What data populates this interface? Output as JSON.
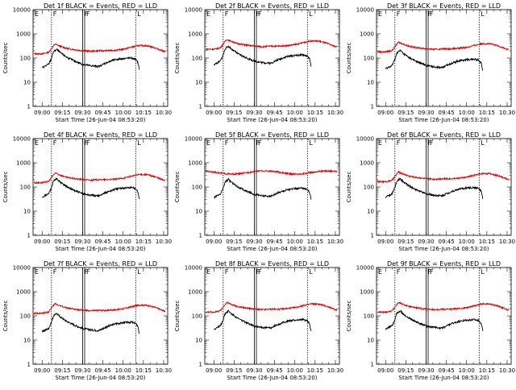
{
  "chart_data": {
    "type": "line",
    "layout": "3x3 grid",
    "x_tick_labels": [
      "09:00",
      "09:15",
      "09:30",
      "09:45",
      "10:00",
      "10:15",
      "10:30"
    ],
    "x_ticks_hours": [
      9.0,
      9.25,
      9.5,
      9.75,
      10.0,
      10.25,
      10.5
    ],
    "x_range_hours": [
      8.888,
      10.55
    ],
    "y_scale": "log",
    "y_range": [
      1,
      10000
    ],
    "y_tick_labels": [
      "1",
      "10",
      "100",
      "1000",
      "10000"
    ],
    "ylabel": "Counts/sec",
    "xlabel": "Start Time (26-Jun-04 08:53:20)",
    "series_colors": {
      "events": "#000000",
      "lld": "#dd0000"
    },
    "interval_markers": [
      {
        "label": "F",
        "start": 9.115,
        "end": 9.5
      },
      {
        "label": "F",
        "start": 9.525,
        "end": 10.155
      }
    ],
    "panels": [
      {
        "title": "Det 1f BLACK = Events, RED = LLD",
        "events_level": 1.0,
        "lld_level": 1.0,
        "lld_flat": false
      },
      {
        "title": "Det 2f BLACK = Events, RED = LLD",
        "events_level": 1.35,
        "lld_level": 1.55,
        "lld_flat": false
      },
      {
        "title": "Det 3f BLACK = Events, RED = LLD",
        "events_level": 0.9,
        "lld_level": 1.2,
        "lld_flat": false
      },
      {
        "title": "Det 4f BLACK = Events, RED = LLD",
        "events_level": 0.95,
        "lld_level": 1.0,
        "lld_flat": false
      },
      {
        "title": "Det 5f BLACK = Events, RED = LLD",
        "events_level": 0.9,
        "lld_level": 1.6,
        "lld_flat": true
      },
      {
        "title": "Det 6f BLACK = Events, RED = LLD",
        "events_level": 0.95,
        "lld_level": 1.1,
        "lld_flat": false
      },
      {
        "title": "Det 7f BLACK = Events, RED = LLD",
        "events_level": 0.55,
        "lld_level": 0.85,
        "lld_flat": false
      },
      {
        "title": "Det 8f BLACK = Events, RED = LLD",
        "events_level": 0.7,
        "lld_level": 0.95,
        "lld_flat": false
      },
      {
        "title": "Det 9f BLACK = Events, RED = LLD",
        "events_level": 0.7,
        "lld_level": 0.95,
        "lld_flat": false
      }
    ],
    "events_profile": [
      [
        8.95,
        null
      ],
      [
        9.0,
        40
      ],
      [
        9.08,
        55
      ],
      [
        9.11,
        90
      ],
      [
        9.14,
        180
      ],
      [
        9.18,
        230
      ],
      [
        9.22,
        170
      ],
      [
        9.3,
        110
      ],
      [
        9.4,
        75
      ],
      [
        9.5,
        55
      ],
      [
        9.6,
        48
      ],
      [
        9.7,
        45
      ],
      [
        9.8,
        65
      ],
      [
        9.9,
        85
      ],
      [
        10.0,
        95
      ],
      [
        10.1,
        100
      ],
      [
        10.15,
        90
      ],
      [
        10.18,
        70
      ],
      [
        10.2,
        35
      ]
    ],
    "lld_profile": [
      [
        8.9,
        150
      ],
      [
        9.0,
        150
      ],
      [
        9.08,
        170
      ],
      [
        9.12,
        260
      ],
      [
        9.16,
        380
      ],
      [
        9.2,
        330
      ],
      [
        9.3,
        250
      ],
      [
        9.45,
        210
      ],
      [
        9.6,
        190
      ],
      [
        9.7,
        200
      ],
      [
        9.8,
        200
      ],
      [
        9.9,
        210
      ],
      [
        10.0,
        230
      ],
      [
        10.1,
        280
      ],
      [
        10.2,
        330
      ],
      [
        10.3,
        320
      ],
      [
        10.4,
        260
      ],
      [
        10.5,
        190
      ]
    ]
  }
}
